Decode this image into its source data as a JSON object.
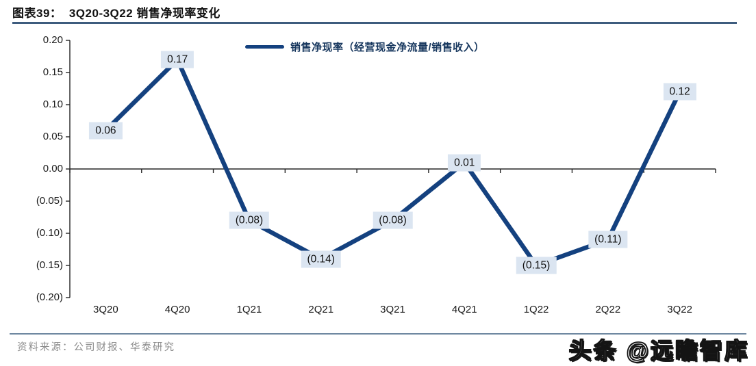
{
  "header": {
    "title": "图表39：  3Q20-3Q22 销售净现率变化"
  },
  "legend": {
    "label": "销售净现率（经营现金净流量/销售收入）"
  },
  "chart_data": {
    "type": "line",
    "title": "3Q20-3Q22 销售净现率变化",
    "series_name": "销售净现率（经营现金净流量/销售收入）",
    "categories": [
      "3Q20",
      "4Q20",
      "1Q21",
      "2Q21",
      "3Q21",
      "4Q21",
      "1Q22",
      "2Q22",
      "3Q22"
    ],
    "values": [
      0.06,
      0.17,
      -0.08,
      -0.14,
      -0.08,
      0.01,
      -0.15,
      -0.11,
      0.12
    ],
    "point_labels": [
      "0.06",
      "0.17",
      "(0.08)",
      "(0.14)",
      "(0.08)",
      "0.01",
      "(0.15)",
      "(0.11)",
      "0.12"
    ],
    "y_ticks": [
      0.2,
      0.15,
      0.1,
      0.05,
      0.0,
      -0.05,
      -0.1,
      -0.15,
      -0.2
    ],
    "y_tick_labels": [
      "0.20",
      "0.15",
      "0.10",
      "0.05",
      "0.00",
      "(0.05)",
      "(0.10)",
      "(0.15)",
      "(0.20)"
    ],
    "ylim": [
      -0.2,
      0.2
    ],
    "grid": false,
    "legend_position": "top-center",
    "line_color": "#14417F",
    "label_bg": "#DBE5F1",
    "axis_color": "#262626"
  },
  "footer": {
    "source": "资料来源：公司财报、华泰研究",
    "watermark": "头条 @远瞻智库"
  }
}
